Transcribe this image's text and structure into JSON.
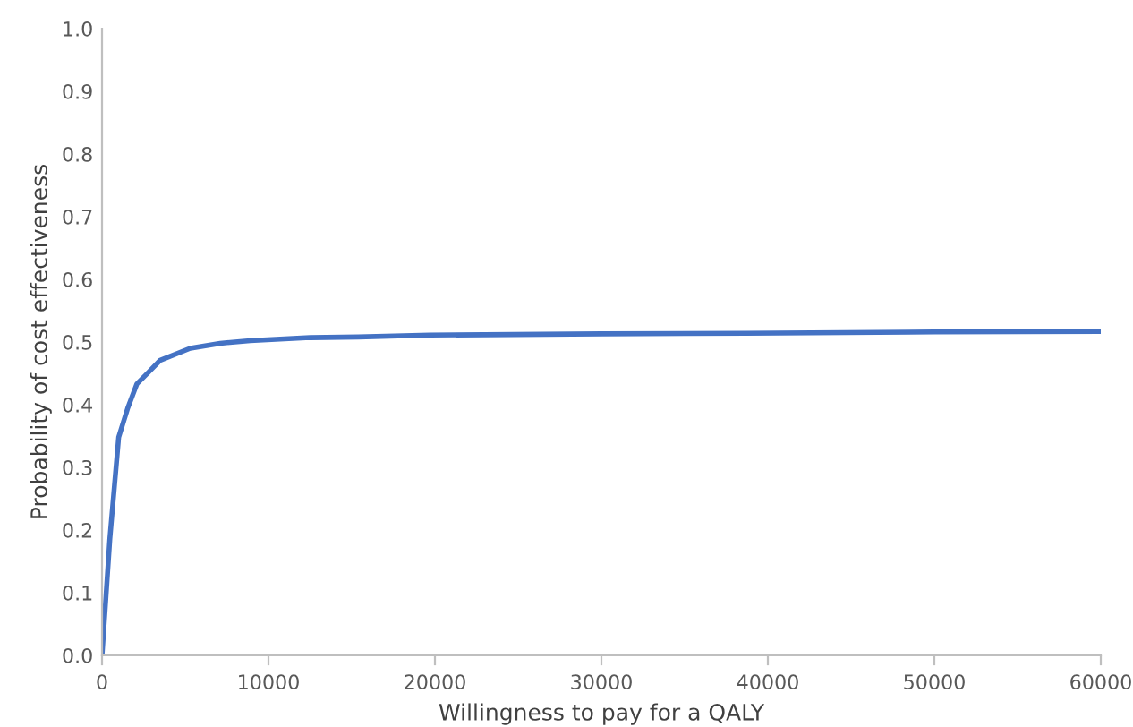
{
  "chart_data": {
    "type": "line",
    "xlabel": "Willingness to pay for a QALY",
    "ylabel": "Probability of cost effectiveness",
    "x": [
      0,
      470,
      1000,
      1550,
      2090,
      2800,
      3500,
      5300,
      7100,
      8900,
      12500,
      15400,
      19700,
      30000,
      38700,
      50000,
      60000
    ],
    "series": [
      {
        "color": "#4472c4",
        "values": [
          0,
          0.186,
          0.348,
          0.395,
          0.433,
          0.452,
          0.471,
          0.49,
          0.498,
          0.502,
          0.507,
          0.508,
          0.511,
          0.513,
          0.514,
          0.516,
          0.517
        ]
      }
    ],
    "xlim": [
      0,
      60000
    ],
    "xticks": [
      0,
      10000,
      20000,
      30000,
      40000,
      50000,
      60000
    ],
    "ylim": [
      0,
      1
    ],
    "yticks": [
      {
        "value": 0,
        "label": "0.0"
      },
      {
        "value": 0.1,
        "label": "0.1"
      },
      {
        "value": 0.2,
        "label": "0.2"
      },
      {
        "value": 0.3,
        "label": "0.3"
      },
      {
        "value": 0.4,
        "label": "0.4"
      },
      {
        "value": 0.5,
        "label": "0.5"
      },
      {
        "value": 0.6,
        "label": "0.6"
      },
      {
        "value": 0.7,
        "label": "0.7"
      },
      {
        "value": 0.8,
        "label": "0.8"
      },
      {
        "value": 0.9,
        "label": "0.9"
      },
      {
        "value": 1,
        "label": "1.0"
      }
    ],
    "grid": false,
    "legend": false,
    "marker": "none",
    "line_style": "solid"
  }
}
